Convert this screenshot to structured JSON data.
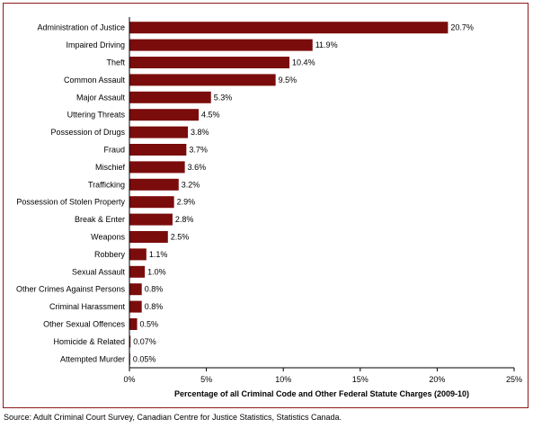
{
  "chart_data": {
    "type": "bar",
    "orientation": "horizontal",
    "categories": [
      "Administration of Justice",
      "Impaired Driving",
      "Theft",
      "Common Assault",
      "Major Assault",
      "Uttering Threats",
      "Possession of Drugs",
      "Fraud",
      "Mischief",
      "Trafficking",
      "Possession of Stolen Property",
      "Break & Enter",
      "Weapons",
      "Robbery",
      "Sexual Assault",
      "Other Crimes Against Persons",
      "Criminal Harassment",
      "Other Sexual Offences",
      "Homicide & Related",
      "Attempted Murder"
    ],
    "values": [
      20.7,
      11.9,
      10.4,
      9.5,
      5.3,
      4.5,
      3.8,
      3.7,
      3.6,
      3.2,
      2.9,
      2.8,
      2.5,
      1.1,
      1.0,
      0.8,
      0.8,
      0.5,
      0.07,
      0.05
    ],
    "data_labels": [
      "20.7%",
      "11.9%",
      "10.4%",
      "9.5%",
      "5.3%",
      "4.5%",
      "3.8%",
      "3.7%",
      "3.6%",
      "3.2%",
      "2.9%",
      "2.8%",
      "2.5%",
      "1.1%",
      "1.0%",
      "0.8%",
      "0.8%",
      "0.5%",
      "0.07%",
      "0.05%"
    ],
    "xlabel": "Percentage of all Criminal Code and Other Federal Statute Charges (2009-10)",
    "xlim": [
      0,
      25
    ],
    "xticks": [
      0,
      5,
      10,
      15,
      20,
      25
    ],
    "xtick_labels": [
      "0%",
      "5%",
      "10%",
      "15%",
      "20%",
      "25%"
    ],
    "grid": false,
    "bar_color": "#7b0c0c"
  },
  "source": "Source:  Adult Criminal Court Survey, Canadian Centre for Justice Statistics, Statistics Canada.",
  "colors": {
    "frame": "#8b1a1a",
    "bar": "#7b0c0c"
  }
}
